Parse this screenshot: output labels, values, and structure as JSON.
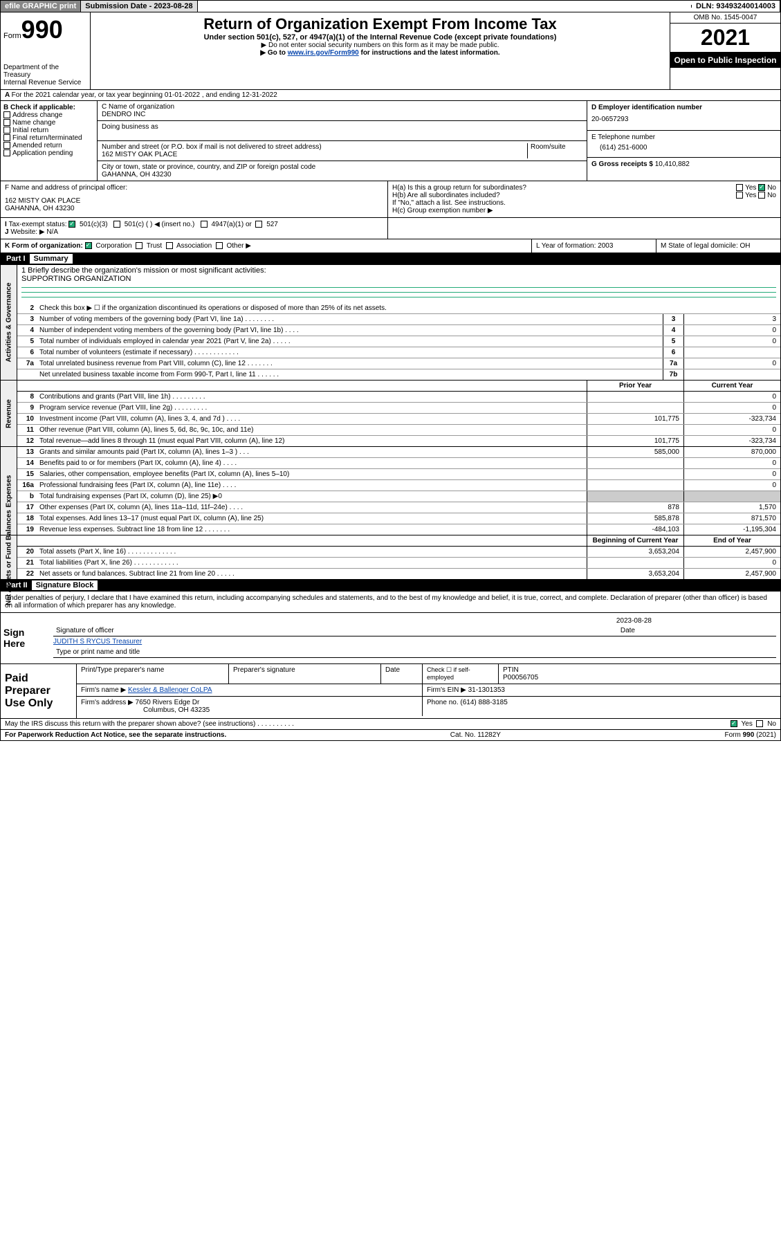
{
  "topbar": {
    "efile": "efile GRAPHIC print",
    "sub_label": "Submission Date - 2023-08-28",
    "dln": "DLN: 93493240014003"
  },
  "header": {
    "form_word": "Form",
    "form_num": "990",
    "title": "Return of Organization Exempt From Income Tax",
    "subtitle": "Under section 501(c), 527, or 4947(a)(1) of the Internal Revenue Code (except private foundations)",
    "note1": "▶ Do not enter social security numbers on this form as it may be made public.",
    "note2_pre": "▶ Go to ",
    "note2_link": "www.irs.gov/Form990",
    "note2_post": " for instructions and the latest information.",
    "dept": "Department of the Treasury\nInternal Revenue Service",
    "omb": "OMB No. 1545-0047",
    "year": "2021",
    "inspect": "Open to Public Inspection"
  },
  "line_a": "For the 2021 calendar year, or tax year beginning 01-01-2022  , and ending 12-31-2022",
  "box_b": {
    "hdr": "B Check if applicable:",
    "items": [
      "Address change",
      "Name change",
      "Initial return",
      "Final return/terminated",
      "Amended return",
      "Application pending"
    ]
  },
  "box_c": {
    "name_lbl": "C Name of organization",
    "name": "DENDRO INC",
    "dba_lbl": "Doing business as",
    "addr_lbl": "Number and street (or P.O. box if mail is not delivered to street address)",
    "room_lbl": "Room/suite",
    "addr": "162 MISTY OAK PLACE",
    "city_lbl": "City or town, state or province, country, and ZIP or foreign postal code",
    "city": "GAHANNA, OH  43230"
  },
  "box_d": {
    "lbl": "D Employer identification number",
    "val": "20-0657293"
  },
  "box_e": {
    "lbl": "E Telephone number",
    "val": "(614) 251-6000"
  },
  "box_g": {
    "lbl": "G Gross receipts $",
    "val": "10,410,882"
  },
  "box_f": {
    "lbl": "F  Name and address of principal officer:",
    "addr1": "162 MISTY OAK PLACE",
    "addr2": "GAHANNA, OH  43230"
  },
  "box_h": {
    "a": "H(a)  Is this a group return for subordinates?",
    "a_yes": "Yes",
    "a_no": "No",
    "b": "H(b)  Are all subordinates included?",
    "b_yes": "Yes",
    "b_no": "No",
    "b_note": "If \"No,\" attach a list. See instructions.",
    "c": "H(c)  Group exemption number ▶"
  },
  "box_i": {
    "lbl": "Tax-exempt status:",
    "o1": "501(c)(3)",
    "o2": "501(c) (  ) ◀ (insert no.)",
    "o3": "4947(a)(1) or",
    "o4": "527"
  },
  "box_j": {
    "lbl": "Website: ▶",
    "val": "N/A"
  },
  "box_k": {
    "lbl": "K Form of organization:",
    "o1": "Corporation",
    "o2": "Trust",
    "o3": "Association",
    "o4": "Other ▶"
  },
  "box_l": {
    "lbl": "L Year of formation:",
    "val": "2003"
  },
  "box_m": {
    "lbl": "M State of legal domicile:",
    "val": "OH"
  },
  "part1": {
    "hdr": "Part I",
    "title": "Summary"
  },
  "mission": {
    "q": "1   Briefly describe the organization's mission or most significant activities:",
    "a": "SUPPORTING ORGANIZATION"
  },
  "summary": {
    "gov": [
      {
        "n": "2",
        "lbl": "Check this box ▶ ☐  if the organization discontinued its operations or disposed of more than 25% of its net assets."
      },
      {
        "n": "3",
        "lbl": "Number of voting members of the governing body (Part VI, line 1a)  .   .   .   .   .   .   .   .",
        "cell": "3",
        "v": "3"
      },
      {
        "n": "4",
        "lbl": "Number of independent voting members of the governing body (Part VI, line 1b)   .   .   .   .",
        "cell": "4",
        "v": "0"
      },
      {
        "n": "5",
        "lbl": "Total number of individuals employed in calendar year 2021 (Part V, line 2a)   .   .   .   .   .",
        "cell": "5",
        "v": "0"
      },
      {
        "n": "6",
        "lbl": "Total number of volunteers (estimate if necessary)   .   .   .   .   .   .   .   .   .   .   .   .",
        "cell": "6",
        "v": ""
      },
      {
        "n": "7a",
        "lbl": "Total unrelated business revenue from Part VIII, column (C), line 12   .   .   .   .   .   .   .",
        "cell": "7a",
        "v": "0"
      },
      {
        "n": "",
        "lbl": "Net unrelated business taxable income from Form 990-T, Part I, line 11   .   .   .   .   .   .",
        "cell": "7b",
        "v": ""
      }
    ],
    "col_prior": "Prior Year",
    "col_curr": "Current Year",
    "rev": [
      {
        "n": "8",
        "lbl": "Contributions and grants (Part VIII, line 1h)   .   .   .   .   .   .   .   .   .",
        "p": "",
        "c": "0"
      },
      {
        "n": "9",
        "lbl": "Program service revenue (Part VIII, line 2g)   .   .   .   .   .   .   .   .   .",
        "p": "",
        "c": "0"
      },
      {
        "n": "10",
        "lbl": "Investment income (Part VIII, column (A), lines 3, 4, and 7d )   .   .   .   .",
        "p": "101,775",
        "c": "-323,734"
      },
      {
        "n": "11",
        "lbl": "Other revenue (Part VIII, column (A), lines 5, 6d, 8c, 9c, 10c, and 11e)",
        "p": "",
        "c": "0"
      },
      {
        "n": "12",
        "lbl": "Total revenue—add lines 8 through 11 (must equal Part VIII, column (A), line 12)",
        "p": "101,775",
        "c": "-323,734"
      }
    ],
    "exp": [
      {
        "n": "13",
        "lbl": "Grants and similar amounts paid (Part IX, column (A), lines 1–3 )   .   .   .",
        "p": "585,000",
        "c": "870,000"
      },
      {
        "n": "14",
        "lbl": "Benefits paid to or for members (Part IX, column (A), line 4)   .   .   .   .",
        "p": "",
        "c": "0"
      },
      {
        "n": "15",
        "lbl": "Salaries, other compensation, employee benefits (Part IX, column (A), lines 5–10)",
        "p": "",
        "c": "0"
      },
      {
        "n": "16a",
        "lbl": "Professional fundraising fees (Part IX, column (A), line 11e)   .   .   .   .",
        "p": "",
        "c": "0"
      },
      {
        "n": "b",
        "lbl": "Total fundraising expenses (Part IX, column (D), line 25) ▶0",
        "p": "",
        "c": "",
        "shade": true
      },
      {
        "n": "17",
        "lbl": "Other expenses (Part IX, column (A), lines 11a–11d, 11f–24e)   .   .   .   .",
        "p": "878",
        "c": "1,570"
      },
      {
        "n": "18",
        "lbl": "Total expenses. Add lines 13–17 (must equal Part IX, column (A), line 25)",
        "p": "585,878",
        "c": "871,570"
      },
      {
        "n": "19",
        "lbl": "Revenue less expenses. Subtract line 18 from line 12  .   .   .   .   .   .   .",
        "p": "-484,103",
        "c": "-1,195,304"
      }
    ],
    "col_beg": "Beginning of Current Year",
    "col_end": "End of Year",
    "net": [
      {
        "n": "20",
        "lbl": "Total assets (Part X, line 16)   .   .   .   .   .   .   .   .   .   .   .   .   .",
        "p": "3,653,204",
        "c": "2,457,900"
      },
      {
        "n": "21",
        "lbl": "Total liabilities (Part X, line 26)   .   .   .   .   .   .   .   .   .   .   .   .",
        "p": "",
        "c": "0"
      },
      {
        "n": "22",
        "lbl": "Net assets or fund balances. Subtract line 21 from line 20   .   .   .   .   .",
        "p": "3,653,204",
        "c": "2,457,900"
      }
    ]
  },
  "vtabs": {
    "gov": "Activities & Governance",
    "rev": "Revenue",
    "exp": "Expenses",
    "net": "Net Assets or Fund Balances"
  },
  "part2": {
    "hdr": "Part II",
    "title": "Signature Block"
  },
  "sig": {
    "decl": "Under penalties of perjury, I declare that I have examined this return, including accompanying schedules and statements, and to the best of my knowledge and belief, it is true, correct, and complete. Declaration of preparer (other than officer) is based on all information of which preparer has any knowledge.",
    "here": "Sign Here",
    "sig_lbl": "Signature of officer",
    "date_lbl": "Date",
    "date": "2023-08-28",
    "name": "JUDITH S RYCUS Treasurer",
    "name_lbl": "Type or print name and title"
  },
  "paid": {
    "hdr": "Paid Preparer Use Only",
    "c1": "Print/Type preparer's name",
    "c2": "Preparer's signature",
    "c3": "Date",
    "c4a": "Check ☐ if self-employed",
    "c4b": "PTIN",
    "ptin": "P00056705",
    "firm_lbl": "Firm's name   ▶",
    "firm": "Kessler & Ballenger CoLPA",
    "ein_lbl": "Firm's EIN ▶",
    "ein": "31-1301353",
    "addr_lbl": "Firm's address ▶",
    "addr1": "7650 Rivers Edge Dr",
    "addr2": "Columbus, OH  43235",
    "phone_lbl": "Phone no.",
    "phone": "(614) 888-3185"
  },
  "footer": {
    "q": "May the IRS discuss this return with the preparer shown above? (see instructions)   .   .   .   .   .   .   .   .   .   .",
    "yes": "Yes",
    "no": "No",
    "pra": "For Paperwork Reduction Act Notice, see the separate instructions.",
    "cat": "Cat. No. 11282Y",
    "form": "Form 990 (2021)"
  },
  "colors": {
    "link": "#0645ad",
    "check": "#2a7a3a"
  }
}
